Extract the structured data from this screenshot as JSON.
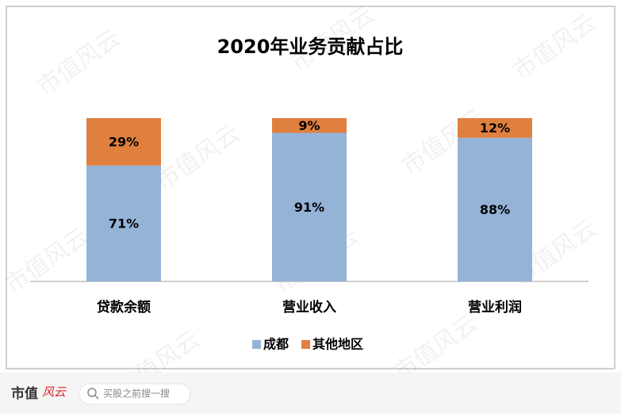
{
  "chart_data": {
    "type": "stacked_bar",
    "title": "2020年业务贡献占比",
    "categories": [
      "贷款余额",
      "营业收入",
      "营业利润"
    ],
    "series": [
      {
        "name": "成都",
        "color": "#95b3d7",
        "values": [
          71,
          91,
          88
        ],
        "value_labels": [
          "71%",
          "91%",
          "88%"
        ]
      },
      {
        "name": "其他地区",
        "color": "#e0803e",
        "values": [
          29,
          9,
          12
        ],
        "value_labels": [
          "29%",
          "9%",
          "12%"
        ]
      }
    ],
    "ylim": [
      0,
      100
    ],
    "legend": "bottom"
  },
  "watermark": "市值风云",
  "footer": {
    "logo": "市值",
    "logo_script": "风云",
    "search_placeholder": "买股之前搜一搜"
  }
}
